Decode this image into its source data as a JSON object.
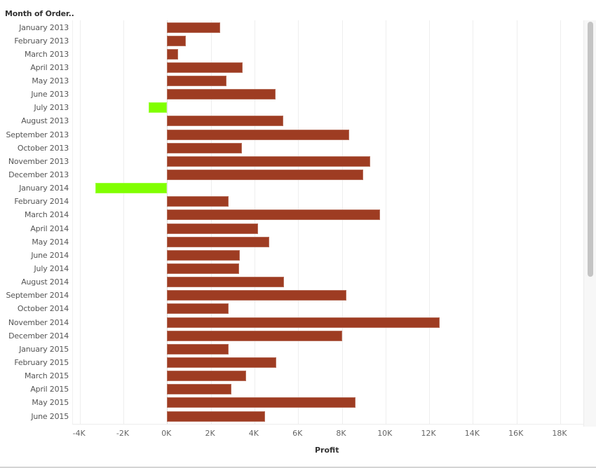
{
  "header": {
    "row_field_title": "Month of Order.."
  },
  "colors": {
    "positive": "#9e3c22",
    "negative": "#80ff00",
    "gridline": "#eeeeee"
  },
  "axis": {
    "title": "Profit",
    "ticks": [
      "-4K",
      "-2K",
      "0K",
      "2K",
      "4K",
      "6K",
      "8K",
      "10K",
      "12K",
      "14K",
      "16K",
      "18K"
    ]
  },
  "scrollbar": {
    "orientation": "vertical"
  },
  "chart_data": {
    "type": "bar",
    "orientation": "horizontal",
    "title": "",
    "xlabel": "Profit",
    "ylabel": "Month of Order..",
    "xlim": [
      -4000,
      19000
    ],
    "xticks": [
      -4000,
      -2000,
      0,
      2000,
      4000,
      6000,
      8000,
      10000,
      12000,
      14000,
      16000,
      18000
    ],
    "xtick_labels": [
      "-4K",
      "-2K",
      "0K",
      "2K",
      "4K",
      "6K",
      "8K",
      "10K",
      "12K",
      "14K",
      "16K",
      "18K"
    ],
    "grid": "vertical",
    "legend": null,
    "color_rule": {
      "positive": "#9e3c22",
      "negative": "#80ff00"
    },
    "categories": [
      "January 2013",
      "February 2013",
      "March 2013",
      "April 2013",
      "May 2013",
      "June 2013",
      "July 2013",
      "August 2013",
      "September 2013",
      "October 2013",
      "November 2013",
      "December 2013",
      "January 2014",
      "February 2014",
      "March 2014",
      "April 2014",
      "May 2014",
      "June 2014",
      "July 2014",
      "August 2014",
      "September 2014",
      "October 2014",
      "November 2014",
      "December 2014",
      "January 2015",
      "February 2015",
      "March 2015",
      "April 2015",
      "May 2015",
      "June 2015"
    ],
    "values": [
      2420,
      860,
      490,
      3470,
      2730,
      4970,
      -850,
      5310,
      8330,
      3440,
      9310,
      8990,
      -3280,
      2800,
      9740,
      4170,
      4670,
      3320,
      3290,
      5350,
      8210,
      2800,
      12470,
      8020,
      2830,
      5010,
      3630,
      2950,
      8640,
      4490
    ]
  }
}
